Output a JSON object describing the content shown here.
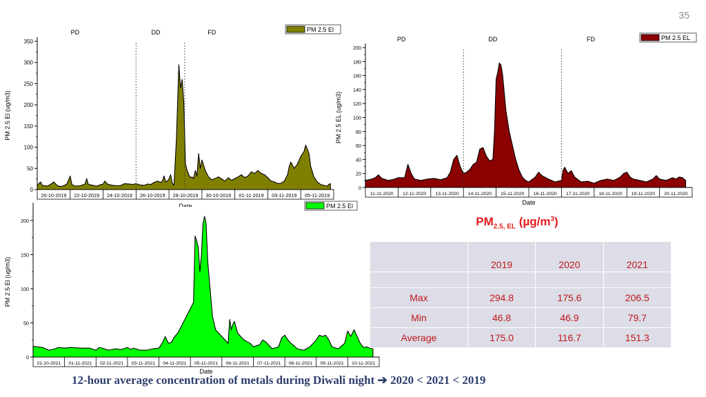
{
  "slide_number": "35",
  "table_title": {
    "main": "PM",
    "sub": "2.5, EL",
    "units_pre": "(µg/m",
    "units_sup": "3",
    "units_post": ")"
  },
  "stats_table": {
    "columns": [
      "",
      "2019",
      "2020",
      "2021"
    ],
    "rows": [
      {
        "label": "Max",
        "values": [
          "294.8",
          "175.6",
          "206.5"
        ]
      },
      {
        "label": "Min",
        "values": [
          "46.8",
          "46.9",
          "79.7"
        ]
      },
      {
        "label": "Average",
        "values": [
          "175.0",
          "116.7",
          "151.3"
        ]
      }
    ]
  },
  "caption": {
    "text": "12-hour average concentration of metals during Diwali night",
    "arrow": "➔",
    "ranking": "2020 < 2021 < 2019"
  },
  "chart_data": [
    {
      "type": "area",
      "year": "2019",
      "ylabel": "PM 2.5 El (ug/m3)",
      "xlabel": "Date",
      "legend": "PM 2.5 El",
      "legend_position": "top-right",
      "color": "#808000",
      "ylim": [
        0,
        350
      ],
      "yticks": [
        0,
        50,
        100,
        150,
        200,
        250,
        300,
        350
      ],
      "xrange": [
        0,
        18
      ],
      "xticks": [
        "20-10-2019",
        "22-10-2019",
        "24-10-2019",
        "26-10-2019",
        "28-10-2019",
        "30-10-2019",
        "01-11-2019",
        "03-11-2019",
        "05-11-2019"
      ],
      "phases": [
        {
          "label": "PD",
          "x": 2.3
        },
        {
          "label": "DD",
          "x": 7.2
        },
        {
          "label": "FD",
          "x": 10.6
        }
      ],
      "dividers": [
        6.0,
        8.95
      ],
      "points": [
        [
          0,
          10
        ],
        [
          0.2,
          18
        ],
        [
          0.3,
          10
        ],
        [
          0.6,
          8
        ],
        [
          0.8,
          12
        ],
        [
          1.0,
          18
        ],
        [
          1.2,
          10
        ],
        [
          1.4,
          7
        ],
        [
          1.6,
          9
        ],
        [
          1.8,
          13
        ],
        [
          2.0,
          32
        ],
        [
          2.1,
          12
        ],
        [
          2.3,
          8
        ],
        [
          2.6,
          9
        ],
        [
          2.9,
          13
        ],
        [
          3.0,
          26
        ],
        [
          3.1,
          12
        ],
        [
          3.4,
          10
        ],
        [
          3.6,
          8
        ],
        [
          3.8,
          11
        ],
        [
          4.0,
          13
        ],
        [
          4.1,
          20
        ],
        [
          4.3,
          12
        ],
        [
          4.6,
          10
        ],
        [
          4.9,
          9
        ],
        [
          5.1,
          10
        ],
        [
          5.3,
          14
        ],
        [
          5.6,
          13
        ],
        [
          5.8,
          12
        ],
        [
          6.0,
          14
        ],
        [
          6.2,
          11
        ],
        [
          6.5,
          10
        ],
        [
          6.7,
          13
        ],
        [
          6.9,
          12
        ],
        [
          7.1,
          17
        ],
        [
          7.3,
          20
        ],
        [
          7.5,
          17
        ],
        [
          7.6,
          20
        ],
        [
          7.7,
          32
        ],
        [
          7.8,
          18
        ],
        [
          7.9,
          20
        ],
        [
          8.0,
          25
        ],
        [
          8.1,
          35
        ],
        [
          8.2,
          15
        ],
        [
          8.3,
          10
        ],
        [
          8.45,
          120
        ],
        [
          8.6,
          295
        ],
        [
          8.7,
          240
        ],
        [
          8.8,
          260
        ],
        [
          8.9,
          205
        ],
        [
          9.0,
          60
        ],
        [
          9.1,
          45
        ],
        [
          9.2,
          35
        ],
        [
          9.3,
          28
        ],
        [
          9.4,
          30
        ],
        [
          9.5,
          26
        ],
        [
          9.6,
          45
        ],
        [
          9.7,
          32
        ],
        [
          9.8,
          85
        ],
        [
          9.9,
          50
        ],
        [
          10.0,
          70
        ],
        [
          10.2,
          45
        ],
        [
          10.4,
          30
        ],
        [
          10.6,
          23
        ],
        [
          10.8,
          26
        ],
        [
          11.0,
          30
        ],
        [
          11.2,
          25
        ],
        [
          11.4,
          20
        ],
        [
          11.6,
          28
        ],
        [
          11.8,
          22
        ],
        [
          12.0,
          26
        ],
        [
          12.2,
          30
        ],
        [
          12.4,
          35
        ],
        [
          12.6,
          28
        ],
        [
          12.8,
          32
        ],
        [
          13.0,
          42
        ],
        [
          13.2,
          38
        ],
        [
          13.4,
          45
        ],
        [
          13.6,
          38
        ],
        [
          13.8,
          35
        ],
        [
          14.0,
          28
        ],
        [
          14.2,
          20
        ],
        [
          14.4,
          18
        ],
        [
          14.6,
          14
        ],
        [
          14.8,
          15
        ],
        [
          15.0,
          20
        ],
        [
          15.2,
          35
        ],
        [
          15.3,
          55
        ],
        [
          15.4,
          65
        ],
        [
          15.6,
          50
        ],
        [
          15.8,
          60
        ],
        [
          16.0,
          78
        ],
        [
          16.2,
          90
        ],
        [
          16.3,
          105
        ],
        [
          16.5,
          85
        ],
        [
          16.6,
          55
        ],
        [
          16.8,
          30
        ],
        [
          17.0,
          18
        ],
        [
          17.2,
          12
        ],
        [
          17.4,
          10
        ],
        [
          17.6,
          8
        ],
        [
          17.7,
          12
        ],
        [
          17.8,
          14
        ]
      ]
    },
    {
      "type": "area",
      "year": "2020",
      "ylabel": "PM 2.5 EL (ug/m3)",
      "xlabel": "Date",
      "legend": "PM 2.5 EL",
      "legend_position": "top-right",
      "color": "#8b0000",
      "ylim": [
        0,
        200
      ],
      "yticks": [
        0,
        20,
        40,
        60,
        80,
        100,
        120,
        140,
        160,
        180,
        200
      ],
      "xrange": [
        0,
        10
      ],
      "xticks": [
        "11-11-2020",
        "12-11-2020",
        "13-11-2020",
        "14-11-2020",
        "15-11-2020",
        "16-11-2020",
        "17-11-2020",
        "18-11-2020",
        "19-11-2020",
        "20-11-2020"
      ],
      "phases": [
        {
          "label": "PD",
          "x": 1.1
        },
        {
          "label": "DD",
          "x": 3.9
        },
        {
          "label": "FD",
          "x": 6.9
        }
      ],
      "dividers": [
        3.0,
        6.0
      ],
      "points": [
        [
          0,
          10
        ],
        [
          0.2,
          12
        ],
        [
          0.3,
          14
        ],
        [
          0.4,
          18
        ],
        [
          0.5,
          13
        ],
        [
          0.7,
          10
        ],
        [
          0.9,
          12
        ],
        [
          1.0,
          14
        ],
        [
          1.2,
          14
        ],
        [
          1.3,
          33
        ],
        [
          1.4,
          20
        ],
        [
          1.5,
          12
        ],
        [
          1.7,
          10
        ],
        [
          1.9,
          12
        ],
        [
          2.1,
          13
        ],
        [
          2.3,
          11
        ],
        [
          2.5,
          14
        ],
        [
          2.6,
          22
        ],
        [
          2.7,
          40
        ],
        [
          2.8,
          46
        ],
        [
          2.9,
          30
        ],
        [
          3.0,
          20
        ],
        [
          3.1,
          22
        ],
        [
          3.2,
          26
        ],
        [
          3.3,
          33
        ],
        [
          3.4,
          36
        ],
        [
          3.5,
          55
        ],
        [
          3.6,
          57
        ],
        [
          3.7,
          45
        ],
        [
          3.8,
          38
        ],
        [
          3.9,
          40
        ],
        [
          3.95,
          80
        ],
        [
          4.0,
          155
        ],
        [
          4.05,
          165
        ],
        [
          4.1,
          178
        ],
        [
          4.15,
          175
        ],
        [
          4.2,
          160
        ],
        [
          4.3,
          110
        ],
        [
          4.4,
          80
        ],
        [
          4.5,
          60
        ],
        [
          4.6,
          40
        ],
        [
          4.7,
          25
        ],
        [
          4.8,
          15
        ],
        [
          4.9,
          10
        ],
        [
          5.0,
          8
        ],
        [
          5.2,
          15
        ],
        [
          5.3,
          22
        ],
        [
          5.4,
          17
        ],
        [
          5.6,
          12
        ],
        [
          5.8,
          8
        ],
        [
          6.0,
          10
        ],
        [
          6.05,
          25
        ],
        [
          6.1,
          29
        ],
        [
          6.2,
          20
        ],
        [
          6.3,
          24
        ],
        [
          6.4,
          15
        ],
        [
          6.6,
          8
        ],
        [
          6.8,
          9
        ],
        [
          7.0,
          6
        ],
        [
          7.2,
          10
        ],
        [
          7.4,
          12
        ],
        [
          7.6,
          10
        ],
        [
          7.8,
          15
        ],
        [
          7.9,
          20
        ],
        [
          8.0,
          22
        ],
        [
          8.1,
          15
        ],
        [
          8.2,
          12
        ],
        [
          8.4,
          10
        ],
        [
          8.6,
          8
        ],
        [
          8.8,
          12
        ],
        [
          8.9,
          17
        ],
        [
          9.0,
          12
        ],
        [
          9.2,
          10
        ],
        [
          9.4,
          14
        ],
        [
          9.5,
          12
        ],
        [
          9.6,
          15
        ],
        [
          9.7,
          14
        ],
        [
          9.8,
          10
        ]
      ]
    },
    {
      "type": "area",
      "year": "2021",
      "ylabel": "PM 2.5 El (ug/m3)",
      "xlabel": "Date",
      "legend": "PM 2.5 El",
      "legend_position": "top-right",
      "color": "#00ff00",
      "ylim": [
        0,
        220
      ],
      "yticks": [
        0,
        50,
        100,
        150,
        200
      ],
      "xrange": [
        0,
        11
      ],
      "xticks": [
        "31-10-2021",
        "01-11-2021",
        "02-11-2021",
        "03-11-2021",
        "04-11-2021",
        "05-11-2021",
        "06-11-2021",
        "07-11-2021",
        "08-11-2021",
        "09-11-2021",
        "10-11-2021"
      ],
      "points": [
        [
          0,
          16
        ],
        [
          0.1,
          15
        ],
        [
          0.3,
          14
        ],
        [
          0.5,
          10
        ],
        [
          0.7,
          12
        ],
        [
          0.8,
          14
        ],
        [
          1.0,
          13
        ],
        [
          1.2,
          14
        ],
        [
          1.5,
          13
        ],
        [
          1.8,
          13
        ],
        [
          2.0,
          10
        ],
        [
          2.1,
          14
        ],
        [
          2.2,
          13
        ],
        [
          2.4,
          10
        ],
        [
          2.6,
          12
        ],
        [
          2.8,
          11
        ],
        [
          3.0,
          14
        ],
        [
          3.1,
          11
        ],
        [
          3.2,
          13
        ],
        [
          3.4,
          10
        ],
        [
          3.6,
          10
        ],
        [
          3.8,
          12
        ],
        [
          4.0,
          13
        ],
        [
          4.1,
          20
        ],
        [
          4.2,
          30
        ],
        [
          4.3,
          20
        ],
        [
          4.4,
          22
        ],
        [
          4.5,
          30
        ],
        [
          4.6,
          35
        ],
        [
          5.1,
          80
        ],
        [
          5.15,
          177
        ],
        [
          5.2,
          170
        ],
        [
          5.25,
          160
        ],
        [
          5.3,
          125
        ],
        [
          5.35,
          150
        ],
        [
          5.4,
          195
        ],
        [
          5.45,
          206
        ],
        [
          5.5,
          195
        ],
        [
          5.55,
          140
        ],
        [
          5.7,
          60
        ],
        [
          5.8,
          40
        ],
        [
          6.0,
          30
        ],
        [
          6.1,
          25
        ],
        [
          6.2,
          20
        ],
        [
          6.25,
          55
        ],
        [
          6.3,
          40
        ],
        [
          6.35,
          48
        ],
        [
          6.4,
          52
        ],
        [
          6.5,
          35
        ],
        [
          6.7,
          25
        ],
        [
          6.9,
          20
        ],
        [
          7.0,
          15
        ],
        [
          7.2,
          18
        ],
        [
          7.3,
          25
        ],
        [
          7.4,
          22
        ],
        [
          7.6,
          12
        ],
        [
          7.8,
          15
        ],
        [
          7.9,
          28
        ],
        [
          8.0,
          32
        ],
        [
          8.1,
          25
        ],
        [
          8.2,
          20
        ],
        [
          8.4,
          12
        ],
        [
          8.6,
          10
        ],
        [
          8.8,
          15
        ],
        [
          9.0,
          25
        ],
        [
          9.1,
          32
        ],
        [
          9.2,
          30
        ],
        [
          9.3,
          32
        ],
        [
          9.4,
          25
        ],
        [
          9.5,
          15
        ],
        [
          9.7,
          12
        ],
        [
          9.9,
          20
        ],
        [
          10.0,
          38
        ],
        [
          10.1,
          30
        ],
        [
          10.2,
          40
        ],
        [
          10.3,
          30
        ],
        [
          10.4,
          20
        ],
        [
          10.5,
          14
        ],
        [
          10.6,
          15
        ],
        [
          10.7,
          13
        ],
        [
          10.8,
          12
        ]
      ]
    }
  ]
}
